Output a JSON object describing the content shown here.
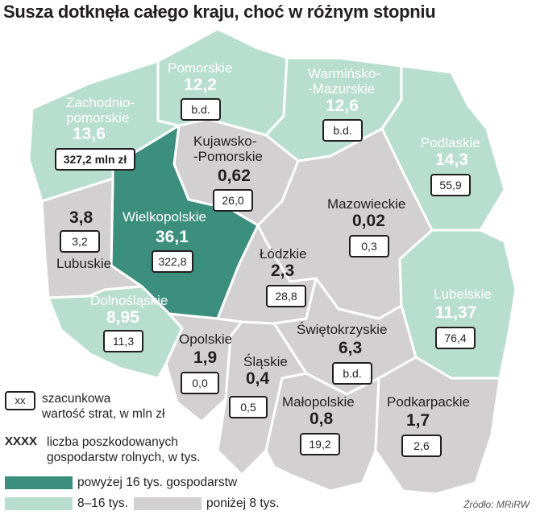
{
  "title": "Susza dotknęła całego kraju, choć w różnym stopniu",
  "colors": {
    "high": "#3d8f7d",
    "mid": "#b8ded0",
    "low": "#d2d0d1",
    "border": "#ffffff",
    "text_dark": "#231f20"
  },
  "regions": {
    "zachodniopomorskie": {
      "name_line1": "Zachodnio-",
      "name_line2": "pomorskie",
      "farms": "13,6",
      "loss": "327,2 mln zł"
    },
    "pomorskie": {
      "name": "Pomorskie",
      "farms": "12,2",
      "loss": "b.d."
    },
    "warminsko_mazurskie": {
      "name_line1": "Warmińsko-",
      "name_line2": "-Mazurskie",
      "farms": "12,6",
      "loss": "b.d."
    },
    "podlaskie": {
      "name": "Podlaskie",
      "farms": "14,3",
      "loss": "55,9"
    },
    "kujawsko_pomorskie": {
      "name_line1": "Kujawsko-",
      "name_line2": "-Pomorskie",
      "farms": "0,62",
      "loss": "26,0"
    },
    "wielkopolskie": {
      "name": "Wielkopolskie",
      "farms": "36,1",
      "loss": "322,8"
    },
    "lubuskie": {
      "name": "Lubuskie",
      "farms": "3,8",
      "loss": "3,2"
    },
    "mazowieckie": {
      "name": "Mazowieckie",
      "farms": "0,02",
      "loss": "0,3"
    },
    "lodzkie": {
      "name": "Łódzkie",
      "farms": "2,3",
      "loss": "28,8"
    },
    "dolnoslaskie": {
      "name": "Dolnośląskie",
      "farms": "8,95",
      "loss": "11,3"
    },
    "lubelskie": {
      "name": "Lubelskie",
      "farms": "11,37",
      "loss": "76,4"
    },
    "opolskie": {
      "name": "Opolskie",
      "farms": "1,9",
      "loss": "0,0"
    },
    "swietokrzyskie": {
      "name": "Świętokrzyskie",
      "farms": "6,3",
      "loss": "b.d."
    },
    "slaskie": {
      "name": "Śląskie",
      "farms": "0,4",
      "loss": "0,5"
    },
    "malopolskie": {
      "name": "Małopolskie",
      "farms": "0,8",
      "loss": "19,2"
    },
    "podkarpackie": {
      "name": "Podkarpackie",
      "farms": "1,7",
      "loss": "2,6"
    }
  },
  "legend": {
    "box_key": "xx",
    "box_line1": "szacunkowa",
    "box_line2": "wartość strat, w mln zł",
    "bold_key": "XXXX",
    "bold_line1": "liczba poszkodowanych",
    "bold_line2": "gospodarstw rolnych, w tys.",
    "high_label": "powyżej 16 tys. gospodarstw",
    "mid_label": "8–16 tys.",
    "low_label": "poniżej 8 tys."
  },
  "source": "Źródło: MRiRW"
}
